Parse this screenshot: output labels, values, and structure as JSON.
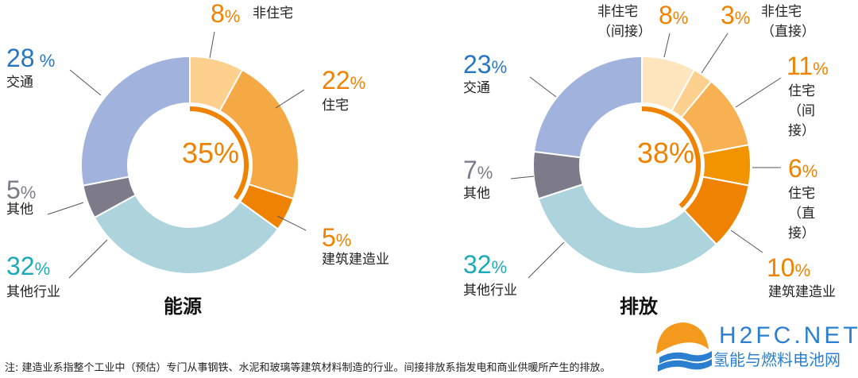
{
  "chart_data": [
    {
      "type": "pie",
      "title": "能源",
      "donut": true,
      "center_label": "35%",
      "highlight_fraction": 0.35,
      "slices": [
        {
          "label": "非住宅",
          "value": 8,
          "color": "#FDD08E"
        },
        {
          "label": "住宅",
          "value": 22,
          "color": "#F5A945"
        },
        {
          "label": "建筑建造业",
          "value": 5,
          "color": "#EF8200"
        },
        {
          "label": "其他行业",
          "value": 32,
          "color": "#ADD4DD"
        },
        {
          "label": "其他",
          "value": 5,
          "color": "#7D7A8A"
        },
        {
          "label": "交通",
          "value": 28,
          "color": "#A1B3DC"
        }
      ]
    },
    {
      "type": "pie",
      "title": "排放",
      "donut": true,
      "center_label": "38%",
      "highlight_fraction": 0.38,
      "slices": [
        {
          "label": "非住宅（间接）",
          "value": 8,
          "color": "#FEE5BD"
        },
        {
          "label": "非住宅（直接）",
          "value": 3,
          "color": "#FDD08E"
        },
        {
          "label": "住宅（间接）",
          "value": 11,
          "color": "#F7B052"
        },
        {
          "label": "住宅（直接）",
          "value": 6,
          "color": "#F29400"
        },
        {
          "label": "建筑建造业",
          "value": 10,
          "color": "#EF8200"
        },
        {
          "label": "其他行业",
          "value": 32,
          "color": "#ADD4DD"
        },
        {
          "label": "其他",
          "value": 7,
          "color": "#7D7A8A"
        },
        {
          "label": "交通",
          "value": 23,
          "color": "#A1B3DC"
        }
      ]
    }
  ],
  "label_colors": {
    "orange": "#EF8200",
    "blue": "#2777C0",
    "gray": "#7D7A8A",
    "teal": "#1BAAB8"
  },
  "footnote": "注: 建造业系指整个工业中（预估）专门从事钢铁、水泥和玻璃等建筑材料制造的行业。间接排放系指发电和商业供暖所产生的排放。",
  "watermark": {
    "name": "H2FC.NET",
    "subtitle": "氢能与燃料电池网"
  }
}
